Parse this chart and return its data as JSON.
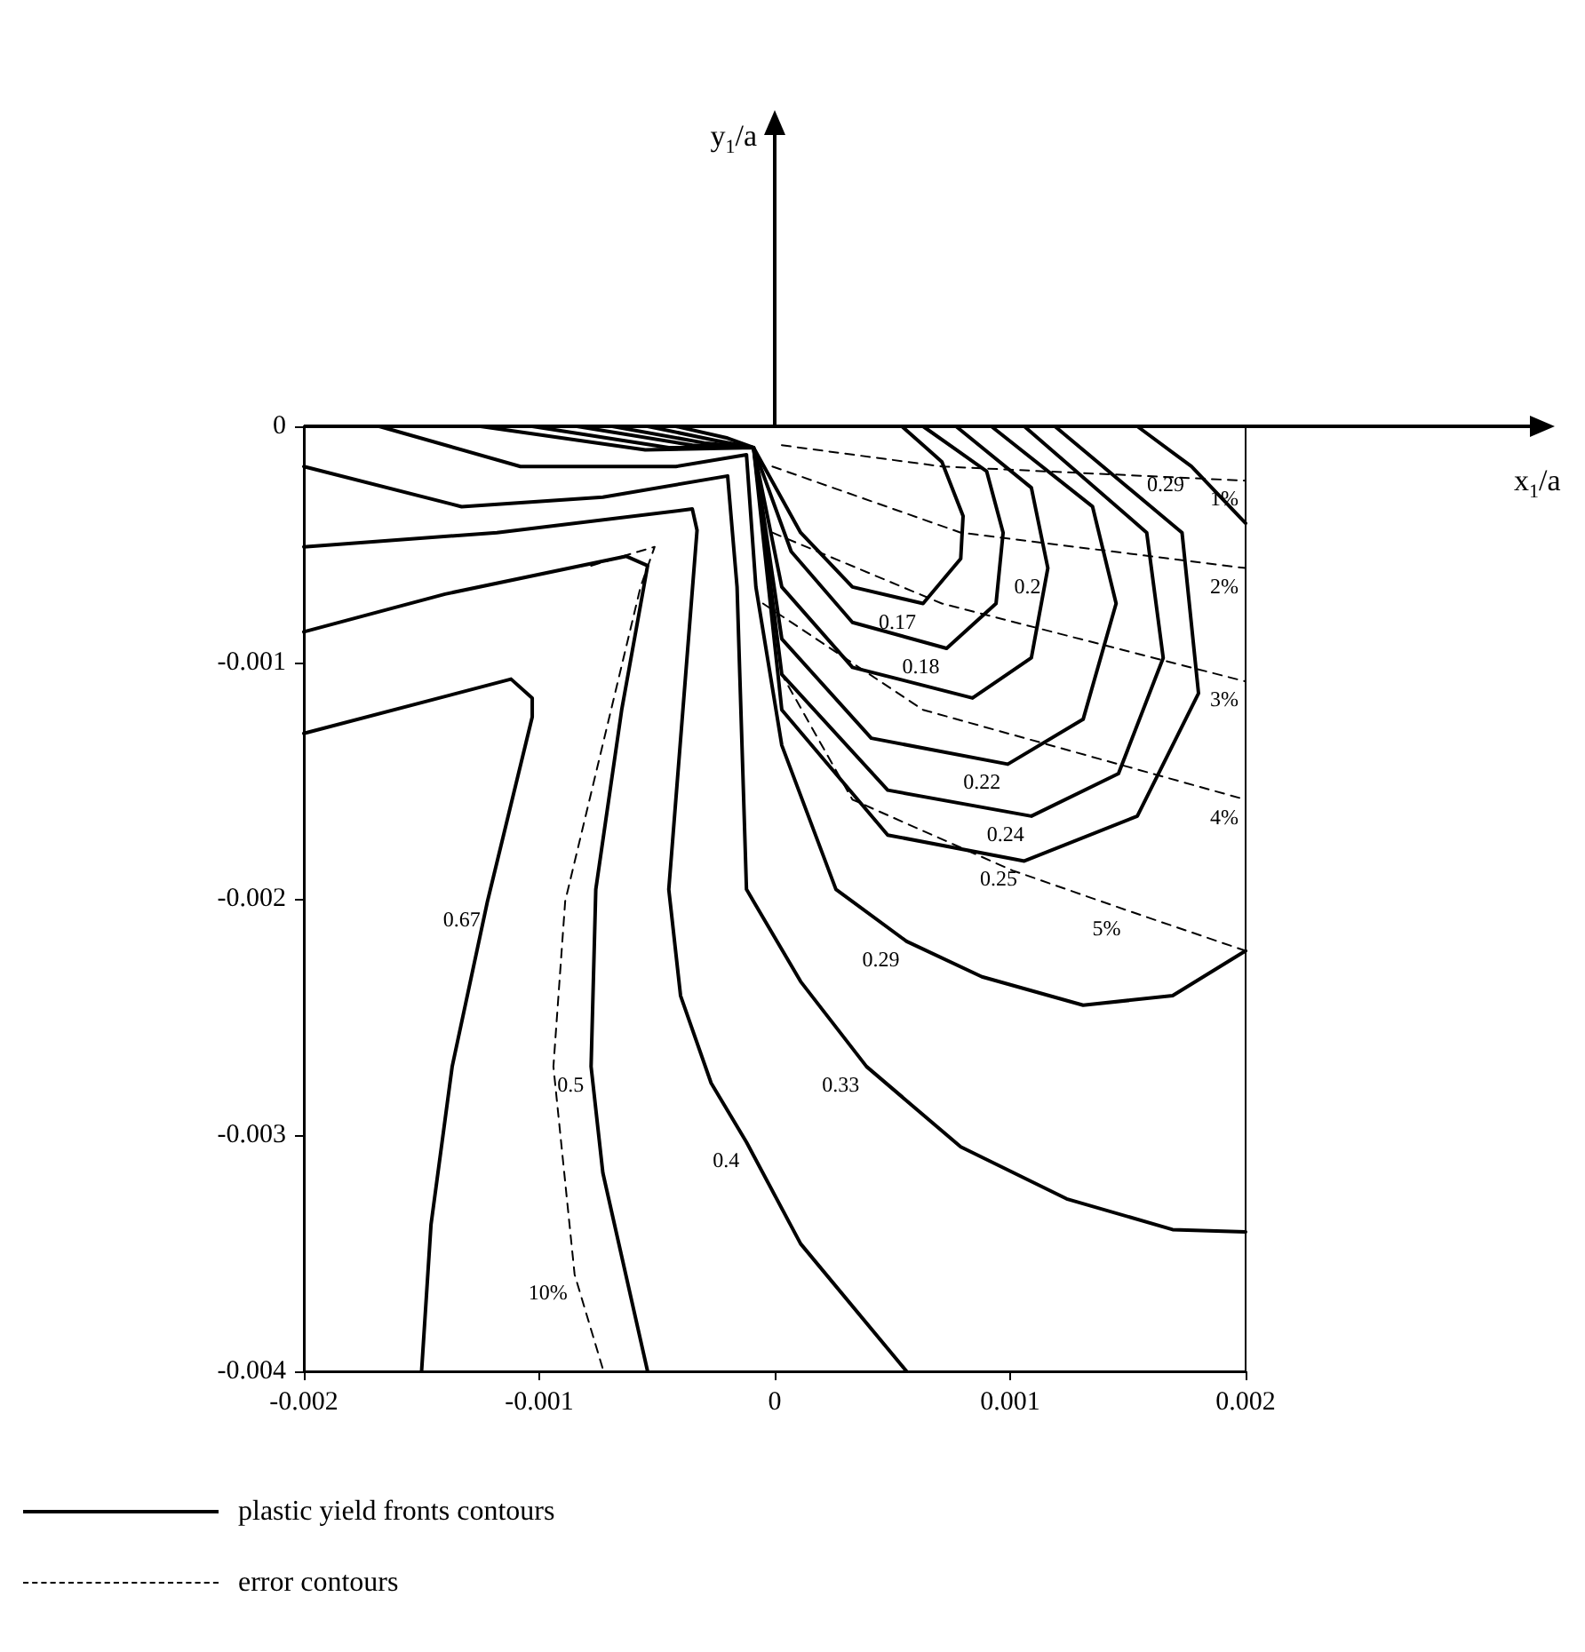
{
  "chart_data": {
    "type": "line",
    "xlim": [
      -0.002,
      0.002
    ],
    "xticks": [
      -0.002,
      -0.001,
      0,
      0.001,
      0.002
    ],
    "ylim": [
      -0.004,
      0
    ],
    "yticks": [
      0,
      -0.001,
      -0.002,
      -0.003,
      -0.004
    ],
    "grid": false,
    "legend": "bottom left",
    "marker": "none",
    "line_style": "solid",
    "series": [
      {
        "name": "plastic yield fronts contours",
        "color": "#000000",
        "x": [
          -0.00042,
          -0.0002,
          -9e-05,
          0.00011,
          0.00033,
          0.00063,
          0.00079,
          0.0008,
          0.00071,
          0.00054
        ],
        "values": [
          0,
          -5e-05,
          -9e-05,
          -0.00045,
          -0.00068,
          -0.00075,
          -0.00056,
          -0.00038,
          -0.00015,
          0
        ]
      },
      {
        "color": "#000000",
        "x": [
          -0.00054,
          -0.00025,
          -9e-05,
          7e-05,
          0.00033,
          0.00073,
          0.00094,
          0.00097,
          0.0009,
          0.00063
        ],
        "values": [
          0,
          -6e-05,
          -9e-05,
          -0.00053,
          -0.00083,
          -0.00094,
          -0.00075,
          -0.00045,
          -0.00019,
          0
        ]
      },
      {
        "color": "#000000",
        "x": [
          -0.00069,
          -0.0003,
          -9e-05,
          3e-05,
          0.00033,
          0.00084,
          0.00109,
          0.00116,
          0.00109,
          0.00077
        ],
        "values": [
          0,
          -7e-05,
          -9e-05,
          -0.00068,
          -0.00102,
          -0.00115,
          -0.00098,
          -0.0006,
          -0.00026,
          0
        ]
      },
      {
        "color": "#000000",
        "x": [
          -0.00084,
          -0.00035,
          -9e-05,
          3e-05,
          0.00041,
          0.00099,
          0.00131,
          0.00145,
          0.00135,
          0.00092
        ],
        "values": [
          0,
          -8e-05,
          -9e-05,
          -0.0009,
          -0.00132,
          -0.00143,
          -0.00124,
          -0.00075,
          -0.00034,
          0
        ]
      },
      {
        "color": "#000000",
        "x": [
          -0.00103,
          -0.00045,
          -9e-05,
          3e-05,
          0.00048,
          0.00109,
          0.00146,
          0.00165,
          0.00158,
          0.00106
        ],
        "values": [
          0,
          -9e-05,
          -9e-05,
          -0.00105,
          -0.00154,
          -0.00165,
          -0.00147,
          -0.00098,
          -0.00045,
          0
        ]
      },
      {
        "color": "#000000",
        "x": [
          -0.00125,
          -0.00055,
          -9e-05,
          3e-05,
          0.00048,
          0.00106,
          0.00154,
          0.0018,
          0.00173,
          0.00119
        ],
        "values": [
          0,
          -0.0001,
          -9e-05,
          -0.0012,
          -0.00173,
          -0.00184,
          -0.00165,
          -0.00113,
          -0.00045,
          0
        ]
      },
      {
        "color": "#000000",
        "x": [
          -0.00168,
          -0.00108,
          -0.00042,
          -0.00012,
          -8e-05,
          3e-05,
          0.00026,
          0.00056,
          0.00088,
          0.00131,
          0.00169,
          0.002
        ],
        "values": [
          0,
          -0.00017,
          -0.00017,
          -0.00012,
          -0.00068,
          -0.00135,
          -0.00196,
          -0.00218,
          -0.00233,
          -0.00245,
          -0.00241,
          -0.00222
        ]
      },
      {
        "color": "#000000",
        "x": [
          0.00154,
          0.00177,
          0.002
        ],
        "values": [
          0,
          -0.00017,
          -0.00041
        ]
      },
      {
        "color": "#000000",
        "x": [
          -0.002,
          -0.00133,
          -0.00073,
          -0.0002,
          -0.00016,
          -0.00012,
          0.00011,
          0.00039,
          0.00079,
          0.00124,
          0.00169,
          0.002
        ],
        "values": [
          -0.00017,
          -0.00034,
          -0.0003,
          -0.00021,
          -0.00068,
          -0.00196,
          -0.00235,
          -0.00271,
          -0.00305,
          -0.00327,
          -0.0034,
          -0.00341
        ]
      },
      {
        "color": "#000000",
        "x": [
          -0.002,
          -0.00118,
          -0.00035,
          -0.00033,
          -0.00039,
          -0.00045,
          -0.0004,
          -0.00027,
          -0.00012,
          0.00011,
          0.00056
        ],
        "values": [
          -0.00051,
          -0.00045,
          -0.00035,
          -0.00044,
          -0.0012,
          -0.00196,
          -0.00241,
          -0.00278,
          -0.00303,
          -0.00346,
          -0.004
        ]
      },
      {
        "color": "#000000",
        "x": [
          -0.002,
          -0.0014,
          -0.00063,
          -0.00054,
          -0.00065,
          -0.00076,
          -0.00078,
          -0.00073,
          -0.00054
        ],
        "values": [
          -0.00087,
          -0.00071,
          -0.00055,
          -0.00059,
          -0.0012,
          -0.00196,
          -0.00271,
          -0.00316,
          -0.004
        ]
      },
      {
        "color": "#000000",
        "x": [
          -0.002,
          -0.00112,
          -0.00103,
          -0.00103,
          -0.00122,
          -0.00137,
          -0.00146,
          -0.0015
        ],
        "values": [
          -0.0013,
          -0.00107,
          -0.00115,
          -0.00123,
          -0.00201,
          -0.00271,
          -0.00338,
          -0.004
        ]
      },
      {
        "name": "error contours",
        "color": "#000000",
        "line_style": "dashed",
        "x": [
          3e-05,
          0.00071,
          0.002
        ],
        "values": [
          -8e-05,
          -0.00017,
          -0.00023
        ]
      },
      {
        "color": "#000000",
        "line_style": "dashed",
        "x": [
          -1e-05,
          0.00079,
          0.002
        ],
        "values": [
          -0.00017,
          -0.00045,
          -0.0006
        ]
      },
      {
        "color": "#000000",
        "line_style": "dashed",
        "x": [
          -1e-05,
          0.00071,
          0.002
        ],
        "values": [
          -0.00045,
          -0.00075,
          -0.00108
        ]
      },
      {
        "color": "#000000",
        "line_style": "dashed",
        "x": [
          -5e-05,
          0.00063,
          0.002
        ],
        "values": [
          -0.00075,
          -0.0012,
          -0.00158
        ]
      },
      {
        "color": "#000000",
        "line_style": "dashed",
        "x": [
          -6e-05,
          3e-05,
          0.00033,
          0.00101,
          0.0015,
          0.002
        ],
        "values": [
          -0.0003,
          -0.00105,
          -0.00158,
          -0.00188,
          -0.00205,
          -0.00222
        ]
      },
      {
        "color": "#000000",
        "line_style": "dashed",
        "x": [
          -0.00078,
          -0.00051,
          -0.00057,
          -0.00089,
          -0.00094,
          -0.00085,
          -0.00073
        ],
        "values": [
          -0.00059,
          -0.00051,
          -0.00068,
          -0.00201,
          -0.00271,
          -0.00359,
          -0.00399
        ]
      }
    ],
    "annotations": [
      "x$_{1}$/a",
      "y$_{1}$/a",
      {
        "text": "0.17",
        "x": 0.00063,
        "y": -0.00075
      },
      {
        "text": "0.18",
        "x": 0.00073,
        "y": -0.00094
      },
      {
        "text": "0.2",
        "x": 0.00116,
        "y": -0.0006
      },
      {
        "text": "0.22",
        "x": 0.00099,
        "y": -0.00143
      },
      {
        "text": "0.24",
        "x": 0.00109,
        "y": -0.00165
      },
      {
        "text": "0.25",
        "x": 0.00106,
        "y": -0.00184
      },
      {
        "text": "0.29",
        "x": 0.00056,
        "y": -0.00218
      },
      {
        "text": "0.29",
        "x": 0.00177,
        "y": -0.00017
      },
      {
        "text": "0.33",
        "x": 0.00039,
        "y": -0.00271
      },
      {
        "text": "0.4",
        "x": -0.00012,
        "y": -0.00303
      },
      {
        "text": "0.5",
        "x": -0.00078,
        "y": -0.00271
      },
      {
        "text": "0.67",
        "x": -0.00122,
        "y": -0.00201
      },
      {
        "text": "1%",
        "x": 0.002,
        "y": -0.00023
      },
      {
        "text": "2%",
        "x": 0.002,
        "y": -0.0006
      },
      {
        "text": "3%",
        "x": 0.002,
        "y": -0.00108
      },
      {
        "text": "4%",
        "x": 0.002,
        "y": -0.00158
      },
      {
        "text": "5%",
        "x": 0.0015,
        "y": -0.00205
      },
      {
        "text": "10%",
        "x": -0.00085,
        "y": -0.00359
      }
    ]
  }
}
